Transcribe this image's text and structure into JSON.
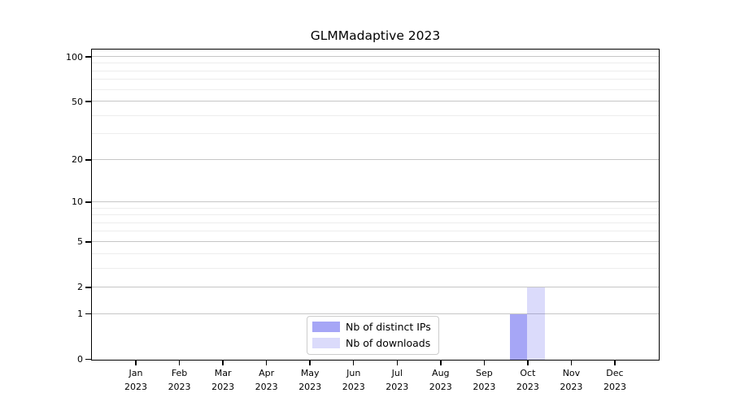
{
  "chart_data": {
    "type": "bar",
    "title": "GLMMadaptive 2023",
    "categories": [
      "Jan",
      "Feb",
      "Mar",
      "Apr",
      "May",
      "Jun",
      "Jul",
      "Aug",
      "Sep",
      "Oct",
      "Nov",
      "Dec"
    ],
    "year_label": "2023",
    "series": [
      {
        "name": "Nb of distinct IPs",
        "color": "rgba(92,92,238,0.55)",
        "solid_hex": "#a9a9f4",
        "values": [
          0,
          0,
          0,
          0,
          0,
          0,
          0,
          0,
          0,
          1,
          0,
          0
        ]
      },
      {
        "name": "Nb of downloads",
        "color": "rgba(92,92,238,0.22)",
        "solid_hex": "#d9daf8",
        "values": [
          0,
          0,
          0,
          0,
          0,
          0,
          0,
          0,
          0,
          2,
          0,
          0
        ]
      }
    ],
    "yscale": "log1p",
    "y_major_ticks": [
      0,
      1,
      2,
      5,
      10,
      20,
      50,
      100
    ],
    "y_minor_gridlines": [
      3,
      4,
      6,
      7,
      8,
      9,
      30,
      40,
      60,
      70,
      80,
      90
    ],
    "ylim": [
      0,
      112
    ],
    "xlabel": "",
    "ylabel": "",
    "grid": true,
    "legend_position": "lower center"
  },
  "colors": {
    "background": "#ffffff",
    "axis": "#000000",
    "major_grid": "#c6c6c6",
    "minor_grid": "#ededed",
    "legend_border": "#cccccc",
    "text": "#000000"
  }
}
